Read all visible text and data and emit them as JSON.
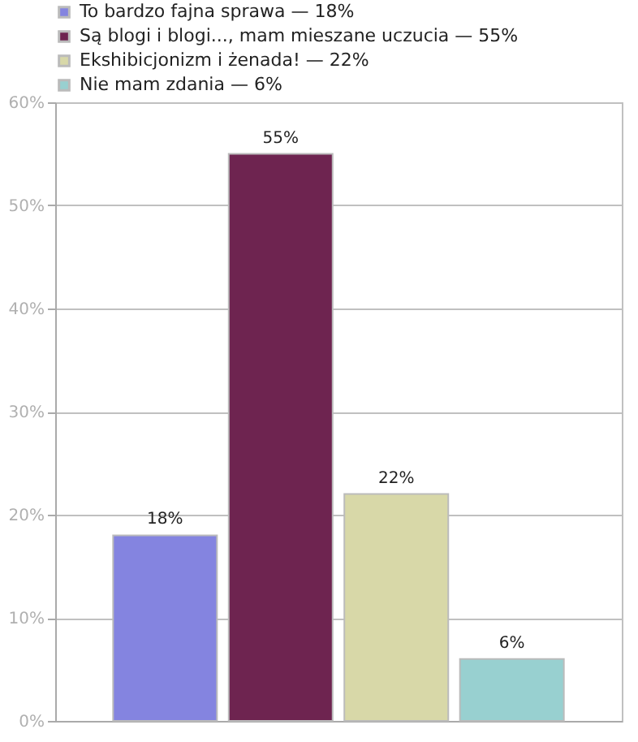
{
  "chart_data": {
    "type": "bar",
    "categories": [
      null,
      null,
      null,
      null
    ],
    "series": [
      {
        "name": "To bardzo fajna sprawa — 18%",
        "color": "#8484e0",
        "values": [
          18,
          null,
          null,
          null
        ],
        "value_labels": [
          "18%",
          null,
          null,
          null
        ]
      },
      {
        "name": "Są blogi i blogi..., mam mieszane uczucia — 55%",
        "color": "#6e2450",
        "values": [
          null,
          55,
          null,
          null
        ],
        "value_labels": [
          null,
          "55%",
          null,
          null
        ]
      },
      {
        "name": "Ekshibicjonizm i żenada! — 22%",
        "color": "#d8d8a8",
        "values": [
          null,
          null,
          22,
          null
        ],
        "value_labels": [
          null,
          null,
          "22%",
          null
        ]
      },
      {
        "name": "Nie mam zdania — 6%",
        "color": "#98d0d0",
        "values": [
          null,
          null,
          null,
          6
        ],
        "value_labels": [
          null,
          null,
          null,
          "6%"
        ]
      }
    ],
    "ylim": [
      0,
      60
    ],
    "yticks": [
      {
        "value": 0,
        "label": "0%"
      },
      {
        "value": 10,
        "label": "10%"
      },
      {
        "value": 20,
        "label": "20%"
      },
      {
        "value": 30,
        "label": "30%"
      },
      {
        "value": 40,
        "label": "40%"
      },
      {
        "value": 50,
        "label": "50%"
      },
      {
        "value": 60,
        "label": "60%"
      }
    ],
    "grid": "y",
    "legend": "top",
    "tick_labels": "y"
  }
}
